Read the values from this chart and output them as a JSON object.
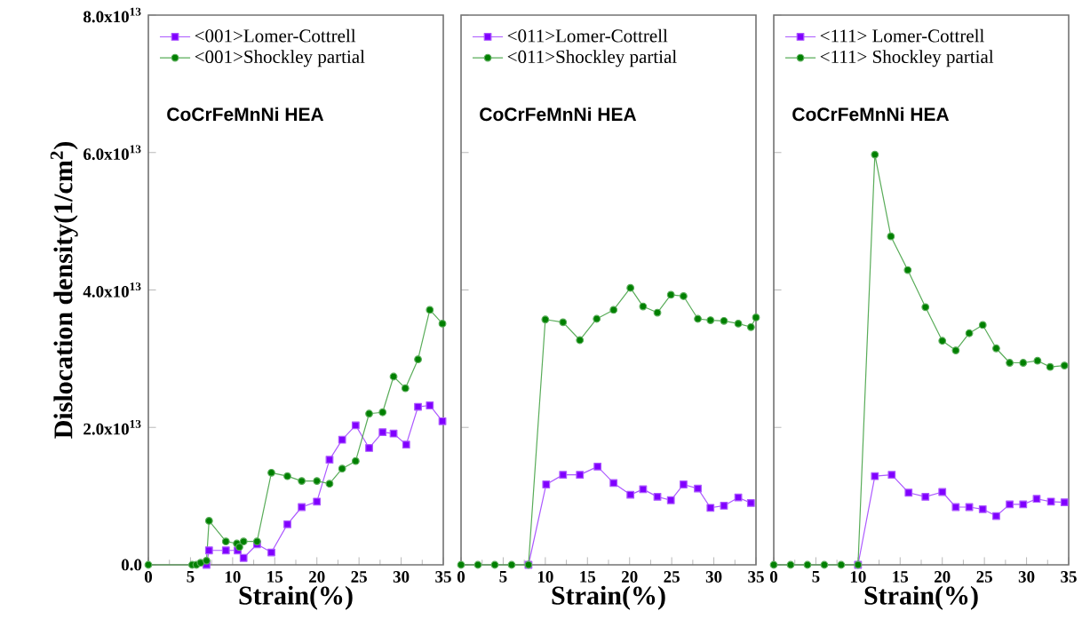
{
  "chart_data": [
    {
      "type": "line",
      "xlabel": "Strain(%)",
      "ylabel": "Dislocation density(1/cm$^{2}$)",
      "annotations": [
        "CoCrFeMnNi HEA"
      ],
      "legend": "top left",
      "xlim": [
        0,
        35
      ],
      "xticks": [
        0,
        5,
        10,
        15,
        20,
        25,
        30,
        35
      ],
      "ylim": [
        0,
        80000000000000.0
      ],
      "yticks": [
        {
          "value": 0,
          "label": "0.0"
        },
        {
          "value": 20000000000000.0,
          "label": "2.0x10$^{13}$"
        },
        {
          "value": 40000000000000.0,
          "label": "4.0x10$^{13}$"
        },
        {
          "value": 60000000000000.0,
          "label": "6.0x10$^{13}$"
        },
        {
          "value": 80000000000000.0,
          "label": "8.0x10$^{13}$"
        }
      ],
      "series": [
        {
          "name": "<001>Lomer-Cottrell",
          "color": "#8000ff",
          "marker": "square",
          "x": [
            6.9,
            7.2,
            9.2,
            10.6,
            11.3,
            12.9,
            14.6,
            16.5,
            18.2,
            20.0,
            21.5,
            23.0,
            24.6,
            26.2,
            27.8,
            29.1,
            30.6,
            32.0,
            33.4,
            34.9
          ],
          "values": [
            0,
            2100000000000.0,
            2100000000000.0,
            2100000000000.0,
            1000000000000.0,
            3000000000000.0,
            1800000000000.0,
            5900000000000.0,
            8400000000000.0,
            9200000000000.0,
            15300000000000.0,
            18200000000000.0,
            20300000000000.0,
            17000000000000.0,
            19300000000000.0,
            19100000000000.0,
            17500000000000.0,
            23000000000000.0,
            23200000000000.0,
            20900000000000.0
          ]
        },
        {
          "name": "<001>Shockley partial",
          "color": "#008000",
          "marker": "circle",
          "x": [
            0,
            5.2,
            5.7,
            6.2,
            6.9,
            7.2,
            9.2,
            10.5,
            10.8,
            11.3,
            12.9,
            14.6,
            16.5,
            18.2,
            20.0,
            21.5,
            23.0,
            24.6,
            26.2,
            27.8,
            29.1,
            30.5,
            32.0,
            33.4,
            34.9
          ],
          "values": [
            0,
            0,
            0,
            300000000000.0,
            600000000000.0,
            6400000000000.0,
            3400000000000.0,
            3100000000000.0,
            2600000000000.0,
            3400000000000.0,
            3400000000000.0,
            13400000000000.0,
            12900000000000.0,
            12200000000000.0,
            12200000000000.0,
            11800000000000.0,
            14000000000000.0,
            15100000000000.0,
            22000000000000.0,
            22200000000000.0,
            27400000000000.0,
            25700000000000.0,
            29900000000000.0,
            37100000000000.0,
            35100000000000.0
          ]
        }
      ]
    },
    {
      "type": "line",
      "xlabel": "Strain(%)",
      "annotations": [
        "CoCrFeMnNi HEA"
      ],
      "legend": "top left",
      "tick_labels": "x",
      "xlim": [
        0,
        35
      ],
      "xticks": [
        0,
        5,
        10,
        15,
        20,
        25,
        30,
        35
      ],
      "ylim": [
        0,
        80000000000000.0
      ],
      "yticks": [
        0,
        20000000000000.0,
        40000000000000.0,
        60000000000000.0,
        80000000000000.0
      ],
      "series": [
        {
          "name": "<011>Lomer-Cottrell",
          "color": "#8000ff",
          "marker": "square",
          "x": [
            8,
            10.1,
            12.1,
            14.1,
            16.2,
            18.1,
            20.1,
            21.6,
            23.3,
            24.9,
            26.4,
            28.1,
            29.6,
            31.2,
            32.9,
            34.4
          ],
          "values": [
            0,
            11700000000000.0,
            13100000000000.0,
            13100000000000.0,
            14300000000000.0,
            11900000000000.0,
            10200000000000.0,
            11000000000000.0,
            9900000000000.0,
            9400000000000.0,
            11700000000000.0,
            11100000000000.0,
            8300000000000.0,
            8600000000000.0,
            9800000000000.0,
            9000000000000.0
          ]
        },
        {
          "name": "<011>Shockley partial",
          "color": "#008000",
          "marker": "circle",
          "x": [
            0,
            2,
            4,
            6,
            8,
            10.0,
            12.1,
            14.1,
            16.1,
            18.1,
            20.1,
            21.6,
            23.3,
            24.9,
            26.4,
            28.1,
            29.6,
            31.2,
            32.9,
            34.4,
            35
          ],
          "values": [
            0,
            0,
            0,
            0,
            0,
            35700000000000.0,
            35300000000000.0,
            32700000000000.0,
            35800000000000.0,
            37100000000000.0,
            40300000000000.0,
            37600000000000.0,
            36700000000000.0,
            39300000000000.0,
            39100000000000.0,
            35800000000000.0,
            35600000000000.0,
            35500000000000.0,
            35100000000000.0,
            34600000000000.0,
            36000000000000.0
          ]
        }
      ]
    },
    {
      "type": "line",
      "xlabel": "Strain(%)",
      "annotations": [
        "CoCrFeMnNi HEA"
      ],
      "legend": "top left",
      "tick_labels": "x",
      "xlim": [
        0,
        35
      ],
      "xticks": [
        0,
        5,
        10,
        15,
        20,
        25,
        30,
        35
      ],
      "ylim": [
        0,
        80000000000000.0
      ],
      "yticks": [
        0,
        20000000000000.0,
        40000000000000.0,
        60000000000000.0,
        80000000000000.0
      ],
      "series": [
        {
          "name": "<111> Lomer-Cottrell",
          "color": "#8000ff",
          "marker": "square",
          "x": [
            10,
            12.0,
            14.0,
            16.0,
            18.0,
            20.0,
            21.6,
            23.2,
            24.8,
            26.4,
            28.0,
            29.6,
            31.2,
            32.9,
            34.5
          ],
          "values": [
            0,
            12900000000000.0,
            13100000000000.0,
            10500000000000.0,
            9900000000000.0,
            10600000000000.0,
            8400000000000.0,
            8400000000000.0,
            8100000000000.0,
            7100000000000.0,
            8800000000000.0,
            8800000000000.0,
            9600000000000.0,
            9200000000000.0,
            9100000000000.0
          ]
        },
        {
          "name": "<111> Shockley partial",
          "color": "#008000",
          "marker": "circle",
          "x": [
            0,
            2,
            4,
            6,
            8,
            10,
            12.0,
            13.9,
            15.9,
            18.0,
            20.0,
            21.6,
            23.2,
            24.8,
            26.4,
            28.0,
            29.6,
            31.3,
            32.8,
            34.5
          ],
          "values": [
            0,
            0,
            0,
            0,
            0,
            0,
            59700000000000.0,
            47800000000000.0,
            42900000000000.0,
            37500000000000.0,
            32600000000000.0,
            31200000000000.0,
            33700000000000.0,
            34900000000000.0,
            31500000000000.0,
            29400000000000.0,
            29400000000000.0,
            29700000000000.0,
            28800000000000.0,
            29000000000000.0
          ]
        }
      ]
    }
  ]
}
